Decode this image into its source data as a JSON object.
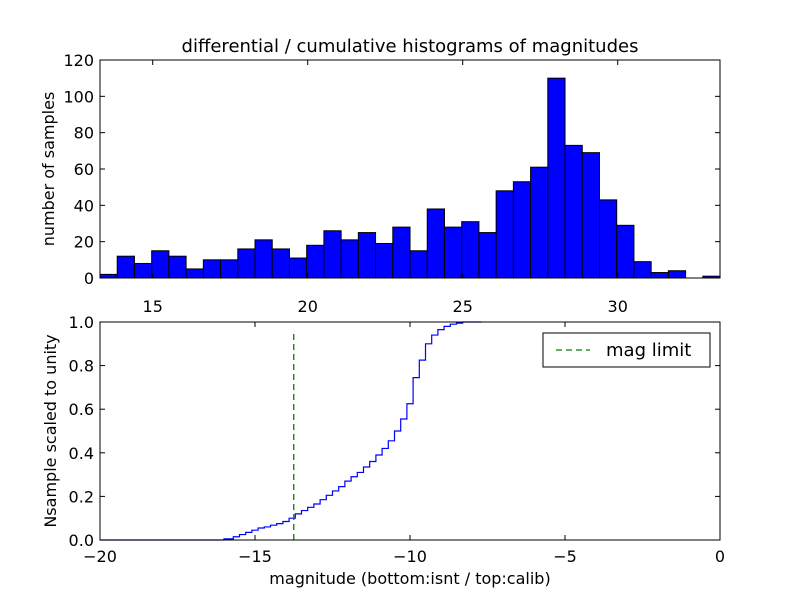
{
  "figure_title": "differential / cumulative histograms of magnitudes",
  "colors": {
    "bar_fill": "#0000ff",
    "bar_edge": "#000000",
    "step_line": "#0000ff",
    "limit_line": "#008000"
  },
  "chart_data": [
    {
      "type": "bar",
      "title": "differential / cumulative histograms of magnitudes",
      "xlabel": "",
      "ylabel": "number of samples",
      "xlim": [
        13.3,
        33.3
      ],
      "ylim": [
        0,
        120
      ],
      "bin_width": 0.5556,
      "bin_start": 13.3,
      "values": [
        2,
        12,
        8,
        15,
        12,
        5,
        10,
        10,
        16,
        21,
        16,
        11,
        18,
        26,
        21,
        25,
        19,
        28,
        15,
        38,
        28,
        31,
        25,
        48,
        53,
        61,
        110,
        73,
        69,
        43,
        29,
        9,
        3,
        4,
        0,
        1
      ],
      "xticks": [
        15,
        20,
        25,
        30
      ],
      "xtick_labels": [
        "15",
        "20",
        "25",
        "30"
      ],
      "xticks_position": "bottom",
      "yticks": [
        0,
        20,
        40,
        60,
        80,
        100,
        120
      ],
      "ytick_labels": [
        "0",
        "20",
        "40",
        "60",
        "80",
        "100",
        "120"
      ]
    },
    {
      "type": "line",
      "drawstyle": "steps",
      "xlabel": "magnitude (bottom:isnt / top:calib)",
      "ylabel": "Nsample scaled to unity",
      "xlim": [
        -20,
        0
      ],
      "ylim": [
        0,
        1
      ],
      "x": [
        -20,
        -16.0,
        -15.7,
        -15.5,
        -15.3,
        -15.1,
        -14.9,
        -14.7,
        -14.5,
        -14.3,
        -14.1,
        -13.9,
        -13.7,
        -13.5,
        -13.3,
        -13.1,
        -12.9,
        -12.7,
        -12.5,
        -12.3,
        -12.1,
        -11.9,
        -11.7,
        -11.5,
        -11.3,
        -11.1,
        -10.9,
        -10.7,
        -10.5,
        -10.3,
        -10.1,
        -9.9,
        -9.7,
        -9.5,
        -9.3,
        -9.1,
        -8.9,
        -8.7,
        -8.5,
        -8.3,
        -8.1,
        -7.9,
        -7.7
      ],
      "y": [
        0,
        0.005,
        0.015,
        0.025,
        0.035,
        0.045,
        0.055,
        0.06,
        0.068,
        0.075,
        0.085,
        0.1,
        0.12,
        0.135,
        0.15,
        0.165,
        0.185,
        0.205,
        0.225,
        0.245,
        0.27,
        0.29,
        0.31,
        0.335,
        0.36,
        0.39,
        0.42,
        0.455,
        0.5,
        0.555,
        0.625,
        0.745,
        0.825,
        0.9,
        0.94,
        0.965,
        0.98,
        0.99,
        0.995,
        1.0,
        1.0,
        1.0,
        1.0
      ],
      "vline": {
        "x": -13.75,
        "y_top": 0.96,
        "label": "mag limit",
        "style": "dashed"
      },
      "legend": {
        "entries": [
          "mag limit"
        ],
        "position": "top-right"
      },
      "xticks": [
        -20,
        -15,
        -10,
        -5,
        0
      ],
      "xtick_labels": [
        "−20",
        "−15",
        "−10",
        "−5",
        "0"
      ],
      "yticks": [
        0.0,
        0.2,
        0.4,
        0.6,
        0.8,
        1.0
      ],
      "ytick_labels": [
        "0.0",
        "0.2",
        "0.4",
        "0.6",
        "0.8",
        "1.0"
      ]
    }
  ]
}
